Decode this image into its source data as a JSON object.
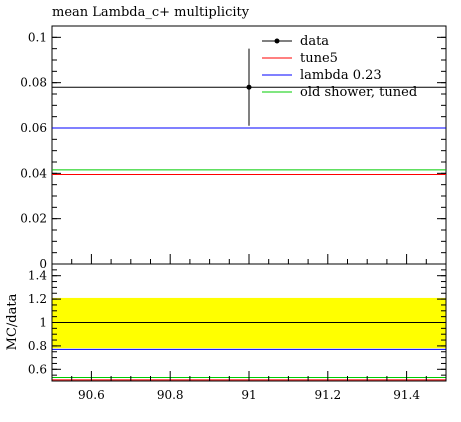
{
  "page_title": "mean Lambda_c+ multiplicity",
  "chart_data": {
    "type": "scatter",
    "title": "mean Lambda_c+ multiplicity",
    "main": {
      "xlim": [
        90.5,
        91.5
      ],
      "ylim": [
        0,
        0.105
      ],
      "yticks": [
        0,
        0.02,
        0.04,
        0.06,
        0.08,
        0.1
      ],
      "ytick_labels": [
        "0",
        "0.02",
        "0.04",
        "0.06",
        "0.08",
        "0.1"
      ]
    },
    "ratio": {
      "ylabel": "MC/data",
      "ylim": [
        0.5,
        1.5
      ],
      "yticks": [
        0.6,
        0.8,
        1.0,
        1.2,
        1.4
      ],
      "ytick_labels": [
        "0.6",
        "0.8",
        "1",
        "1.2",
        "1.4"
      ],
      "band": [
        0.78,
        1.21
      ],
      "band_color": "#ffff00"
    },
    "xticks": [
      90.6,
      90.8,
      91.0,
      91.2,
      91.4
    ],
    "xtick_labels": [
      "90.6",
      "90.8",
      "91",
      "91.2",
      "91.4"
    ],
    "data": {
      "name": "data",
      "x": 91.0,
      "y": 0.078,
      "yerr": 0.017,
      "color": "#000000"
    },
    "series": [
      {
        "name": "tune5",
        "value": 0.0395,
        "ratio": 0.51,
        "color": "#ff0000"
      },
      {
        "name": "lambda 0.23",
        "value": 0.06,
        "ratio": 0.77,
        "color": "#0000ff"
      },
      {
        "name": "old shower, tuned",
        "value": 0.0415,
        "ratio": 0.53,
        "color": "#00cc00"
      }
    ],
    "reference_line": {
      "value": 0.078,
      "ratio": 1.0,
      "color": "#000000"
    }
  }
}
